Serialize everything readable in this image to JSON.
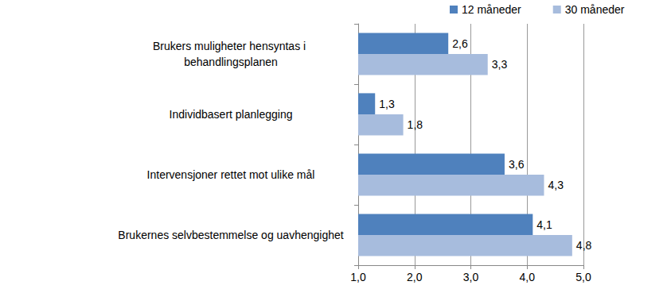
{
  "chart_data": {
    "type": "bar",
    "orientation": "horizontal",
    "categories": [
      "Brukers muligheter hensyntas i behandlingsplanen",
      "Individbasert planlegging",
      "Intervensjoner rettet mot ulike mål",
      "Brukernes selvbestemmelse og uavhengighet"
    ],
    "series": [
      {
        "name": "12 måneder",
        "color": "#4f81bd",
        "values": [
          2.6,
          1.3,
          3.6,
          4.1
        ],
        "value_labels": [
          "2,6",
          "1,3",
          "3,6",
          "4,1"
        ]
      },
      {
        "name": "30 måneder",
        "color": "#a7bcdd",
        "values": [
          3.3,
          1.8,
          4.3,
          4.8
        ],
        "value_labels": [
          "3,3",
          "1,8",
          "4,3",
          "4,8"
        ]
      }
    ],
    "xlim": [
      1,
      5
    ],
    "xticks": [
      {
        "value": 1,
        "label": "1,0"
      },
      {
        "value": 2,
        "label": "2,0"
      },
      {
        "value": 3,
        "label": "3,0"
      },
      {
        "value": 4,
        "label": "4,0"
      },
      {
        "value": 5,
        "label": "5,0"
      }
    ],
    "grid": true,
    "legend": "top",
    "data_labels": true
  }
}
